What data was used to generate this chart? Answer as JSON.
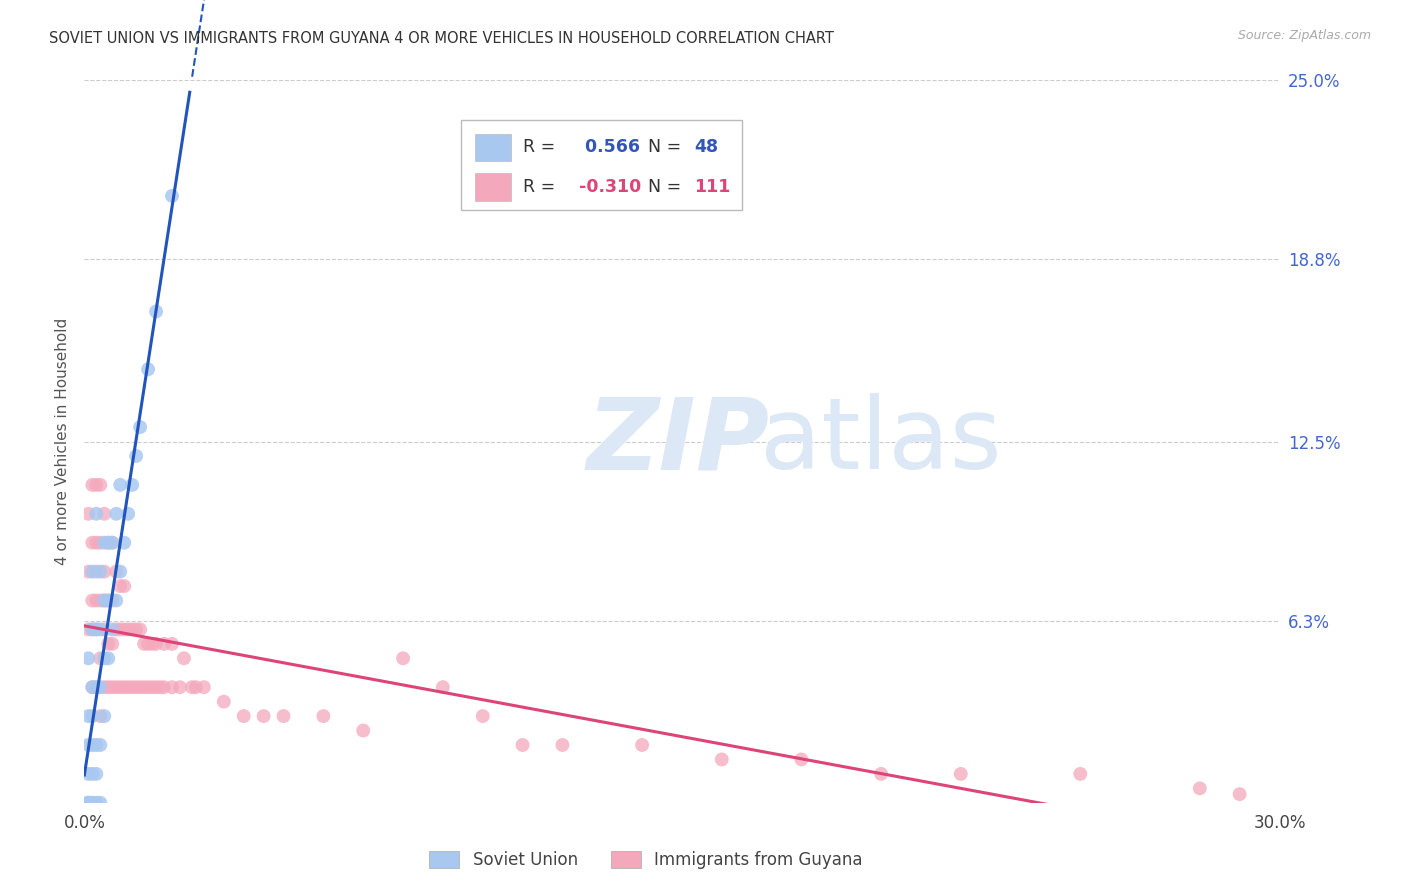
{
  "title": "SOVIET UNION VS IMMIGRANTS FROM GUYANA 4 OR MORE VEHICLES IN HOUSEHOLD CORRELATION CHART",
  "source": "Source: ZipAtlas.com",
  "ylabel": "4 or more Vehicles in Household",
  "x_min": 0.0,
  "x_max": 0.3,
  "y_min": 0.0,
  "y_max": 0.25,
  "y_tick_vals": [
    0.063,
    0.125,
    0.188,
    0.25
  ],
  "y_tick_labels": [
    "6.3%",
    "12.5%",
    "18.8%",
    "25.0%"
  ],
  "blue_scatter_color": "#a8c8f0",
  "pink_scatter_color": "#f4a8bc",
  "blue_line_color": "#2255bb",
  "pink_line_color": "#dd4477",
  "grid_color": "#cccccc",
  "watermark_color": "#dce8f5",
  "legend_label_blue": "Soviet Union",
  "legend_label_pink": "Immigrants from Guyana",
  "rn_text_color": "#3355bb",
  "rn_pink_color": "#dd4477",
  "label_color": "#333333",
  "right_tick_color": "#4466cc",
  "soviet_x": [
    0.001,
    0.001,
    0.001,
    0.001,
    0.001,
    0.001,
    0.001,
    0.001,
    0.002,
    0.002,
    0.002,
    0.002,
    0.002,
    0.002,
    0.002,
    0.002,
    0.003,
    0.003,
    0.003,
    0.003,
    0.003,
    0.003,
    0.004,
    0.004,
    0.004,
    0.004,
    0.004,
    0.005,
    0.005,
    0.005,
    0.005,
    0.006,
    0.006,
    0.006,
    0.007,
    0.007,
    0.008,
    0.008,
    0.009,
    0.009,
    0.01,
    0.011,
    0.012,
    0.013,
    0.014,
    0.016,
    0.018,
    0.022
  ],
  "soviet_y": [
    0.0,
    0.0,
    0.0,
    0.0,
    0.01,
    0.02,
    0.03,
    0.05,
    0.0,
    0.0,
    0.01,
    0.02,
    0.03,
    0.04,
    0.06,
    0.08,
    0.0,
    0.01,
    0.02,
    0.04,
    0.06,
    0.1,
    0.0,
    0.02,
    0.04,
    0.06,
    0.08,
    0.03,
    0.05,
    0.07,
    0.09,
    0.05,
    0.07,
    0.09,
    0.06,
    0.09,
    0.07,
    0.1,
    0.08,
    0.11,
    0.09,
    0.1,
    0.11,
    0.12,
    0.13,
    0.15,
    0.17,
    0.21
  ],
  "guyana_x": [
    0.001,
    0.001,
    0.001,
    0.002,
    0.002,
    0.002,
    0.002,
    0.002,
    0.003,
    0.003,
    0.003,
    0.003,
    0.003,
    0.003,
    0.004,
    0.004,
    0.004,
    0.004,
    0.004,
    0.005,
    0.005,
    0.005,
    0.005,
    0.005,
    0.006,
    0.006,
    0.006,
    0.006,
    0.007,
    0.007,
    0.007,
    0.007,
    0.008,
    0.008,
    0.008,
    0.009,
    0.009,
    0.009,
    0.01,
    0.01,
    0.01,
    0.011,
    0.011,
    0.012,
    0.012,
    0.013,
    0.013,
    0.014,
    0.014,
    0.015,
    0.015,
    0.016,
    0.016,
    0.017,
    0.017,
    0.018,
    0.018,
    0.019,
    0.02,
    0.02,
    0.022,
    0.022,
    0.024,
    0.025,
    0.027,
    0.028,
    0.03,
    0.035,
    0.04,
    0.045,
    0.05,
    0.06,
    0.07,
    0.08,
    0.09,
    0.1,
    0.11,
    0.12,
    0.14,
    0.16,
    0.18,
    0.2,
    0.22,
    0.25,
    0.28,
    0.29
  ],
  "guyana_y": [
    0.06,
    0.08,
    0.1,
    0.04,
    0.06,
    0.07,
    0.09,
    0.11,
    0.04,
    0.06,
    0.07,
    0.08,
    0.09,
    0.11,
    0.03,
    0.05,
    0.07,
    0.09,
    0.11,
    0.04,
    0.06,
    0.07,
    0.08,
    0.1,
    0.04,
    0.055,
    0.07,
    0.09,
    0.04,
    0.055,
    0.07,
    0.09,
    0.04,
    0.06,
    0.08,
    0.04,
    0.06,
    0.075,
    0.04,
    0.06,
    0.075,
    0.04,
    0.06,
    0.04,
    0.06,
    0.04,
    0.06,
    0.04,
    0.06,
    0.04,
    0.055,
    0.04,
    0.055,
    0.04,
    0.055,
    0.04,
    0.055,
    0.04,
    0.04,
    0.055,
    0.04,
    0.055,
    0.04,
    0.05,
    0.04,
    0.04,
    0.04,
    0.035,
    0.03,
    0.03,
    0.03,
    0.03,
    0.025,
    0.05,
    0.04,
    0.03,
    0.02,
    0.02,
    0.02,
    0.015,
    0.015,
    0.01,
    0.01,
    0.01,
    0.005,
    0.003
  ]
}
